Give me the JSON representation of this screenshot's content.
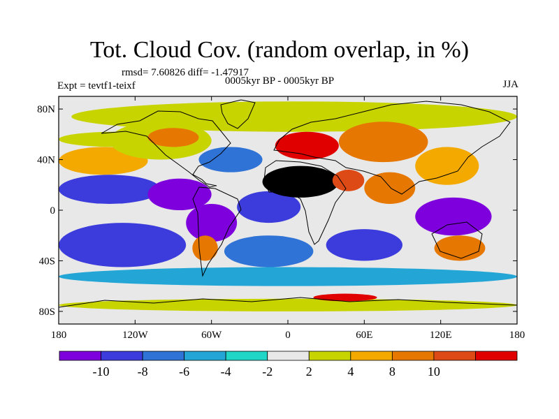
{
  "title": "Tot. Cloud Cov. (random overlap, in %)",
  "stats": "rmsd= 7.60826 diff= -1.47917",
  "experiment": "Expt = tevtf1-teixf",
  "period": "0005kyr BP - 0005kyr BP",
  "season": "JJA",
  "map": {
    "lon_range": [
      -180,
      180
    ],
    "lat_range": [
      -90,
      90
    ],
    "x_ticks": [
      {
        "lon": -180,
        "label": "180"
      },
      {
        "lon": -120,
        "label": "120W"
      },
      {
        "lon": -60,
        "label": "60W"
      },
      {
        "lon": 0,
        "label": "0"
      },
      {
        "lon": 60,
        "label": "60E"
      },
      {
        "lon": 120,
        "label": "120E"
      },
      {
        "lon": 180,
        "label": "180"
      }
    ],
    "y_ticks": [
      {
        "lat": 80,
        "label": "80N"
      },
      {
        "lat": 40,
        "label": "40N"
      },
      {
        "lat": 0,
        "label": "0"
      },
      {
        "lat": -40,
        "label": "40S"
      },
      {
        "lat": -80,
        "label": "80S"
      }
    ],
    "features": [
      {
        "name": "polar-anomaly-patch",
        "lon": [
          -170,
          180
        ],
        "lat": [
          62,
          86
        ],
        "level": 6
      },
      {
        "name": "north-pacific-band",
        "lon": [
          -180,
          -110
        ],
        "lat": [
          28,
          50
        ],
        "level": 7
      },
      {
        "name": "north-pacific-weak",
        "lon": [
          -180,
          -90
        ],
        "lat": [
          50,
          62
        ],
        "level": 6
      },
      {
        "name": "north-america-mixed",
        "lon": [
          -140,
          -60
        ],
        "lat": [
          40,
          70
        ],
        "level": 6
      },
      {
        "name": "canada-warm",
        "lon": [
          -110,
          -70
        ],
        "lat": [
          50,
          65
        ],
        "level": 8
      },
      {
        "name": "north-atlantic-cool",
        "lon": [
          -70,
          -20
        ],
        "lat": [
          30,
          50
        ],
        "level": 2
      },
      {
        "name": "subtropical-pacific-negative",
        "lon": [
          -180,
          -100
        ],
        "lat": [
          5,
          28
        ],
        "level": 1
      },
      {
        "name": "central-america-negative",
        "lon": [
          -110,
          -60
        ],
        "lat": [
          0,
          25
        ],
        "level": 0
      },
      {
        "name": "amazon-negative",
        "lon": [
          -80,
          -40
        ],
        "lat": [
          -25,
          5
        ],
        "level": 0
      },
      {
        "name": "tropical-atlantic-negative",
        "lon": [
          -40,
          10
        ],
        "lat": [
          -10,
          15
        ],
        "level": 1
      },
      {
        "name": "europe-positive",
        "lon": [
          -10,
          40
        ],
        "lat": [
          40,
          62
        ],
        "level": 10
      },
      {
        "name": "eurasia-mixed",
        "lon": [
          40,
          110
        ],
        "lat": [
          38,
          70
        ],
        "level": 8
      },
      {
        "name": "east-asia-positive",
        "lon": [
          100,
          150
        ],
        "lat": [
          20,
          50
        ],
        "level": 7
      },
      {
        "name": "sahara-positive",
        "lon": [
          -20,
          40
        ],
        "lat": [
          10,
          35
        ],
        "level": 11
      },
      {
        "name": "arabia-positive",
        "lon": [
          35,
          60
        ],
        "lat": [
          15,
          32
        ],
        "level": 9
      },
      {
        "name": "india-positive",
        "lon": [
          60,
          100
        ],
        "lat": [
          5,
          30
        ],
        "level": 8
      },
      {
        "name": "west-pacific-negative",
        "lon": [
          100,
          160
        ],
        "lat": [
          -20,
          10
        ],
        "level": 0
      },
      {
        "name": "indian-ocean-negative",
        "lon": [
          30,
          90
        ],
        "lat": [
          -40,
          -15
        ],
        "level": 1
      },
      {
        "name": "south-pacific-negative",
        "lon": [
          -180,
          -80
        ],
        "lat": [
          -45,
          -10
        ],
        "level": 1
      },
      {
        "name": "south-atlantic-negative",
        "lon": [
          -50,
          20
        ],
        "lat": [
          -45,
          -20
        ],
        "level": 2
      },
      {
        "name": "southern-ocean-cyan",
        "lon": [
          -180,
          180
        ],
        "lat": [
          -60,
          -45
        ],
        "level": 3
      },
      {
        "name": "south-america-positive",
        "lon": [
          -75,
          -55
        ],
        "lat": [
          -40,
          -20
        ],
        "level": 8
      },
      {
        "name": "australia-positive",
        "lon": [
          115,
          155
        ],
        "lat": [
          -40,
          -20
        ],
        "level": 8
      },
      {
        "name": "antarctic-coast-mixed",
        "lon": [
          -180,
          180
        ],
        "lat": [
          -80,
          -70
        ],
        "level": 6
      },
      {
        "name": "antarctic-red-patches",
        "lon": [
          20,
          70
        ],
        "lat": [
          -72,
          -66
        ],
        "level": 10
      }
    ]
  },
  "colorbar": {
    "colors": [
      "#7d00dd",
      "#3c3cdc",
      "#2f73d6",
      "#23a6d6",
      "#20d6c6",
      "#e8e8e8",
      "#c8d400",
      "#f3a900",
      "#e67700",
      "#de4a16",
      "#e00000"
    ],
    "labels": [
      "-10",
      "-8",
      "-6",
      "-4",
      "-2",
      "2",
      "4",
      "8",
      "10"
    ]
  }
}
